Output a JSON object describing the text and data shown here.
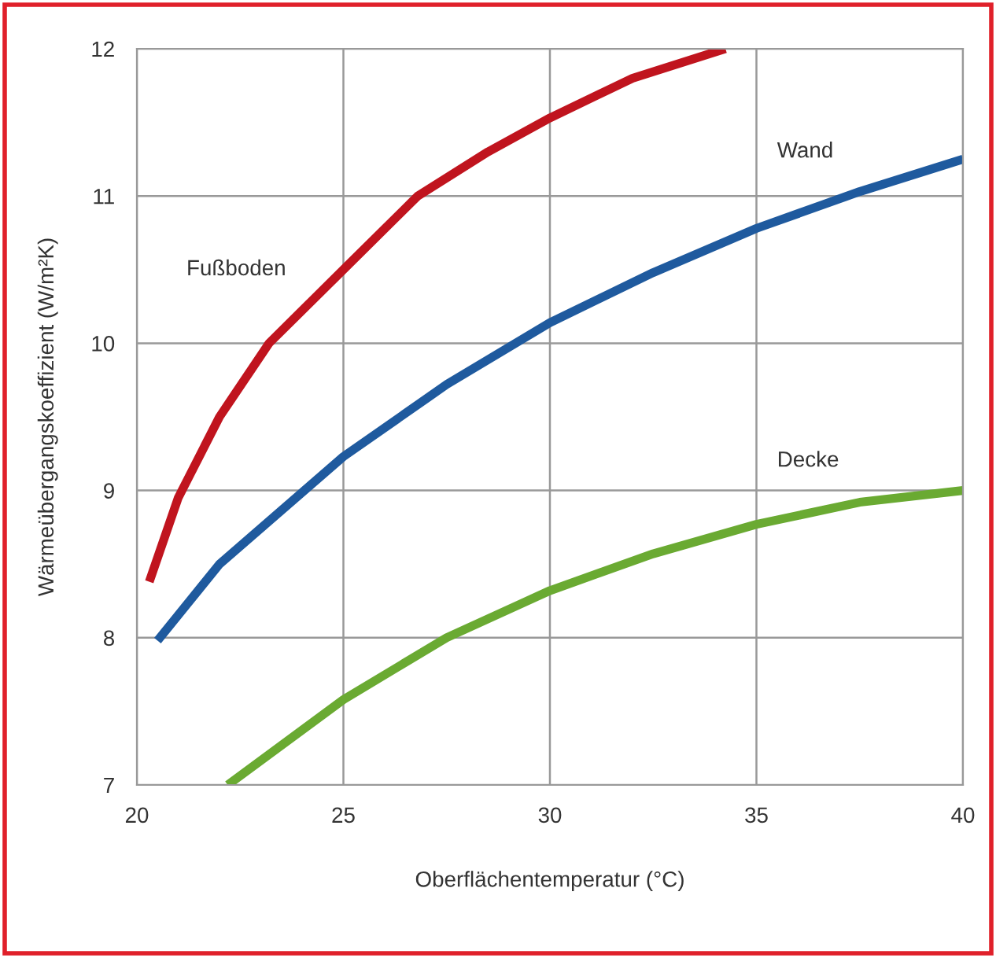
{
  "chart_data": {
    "type": "line",
    "xlabel": "Oberflächentemperatur (°C)",
    "ylabel": "Wärmeübergangskoeffizient (W/m²K)",
    "xlim": [
      20,
      40
    ],
    "xticks": [
      20,
      25,
      30,
      35,
      40
    ],
    "ylim": [
      7,
      12
    ],
    "yticks": [
      7,
      8,
      9,
      10,
      11,
      12
    ],
    "grid": true,
    "legend": false,
    "marker": "none",
    "line_style": "solid",
    "series": [
      {
        "name": "Fußboden",
        "color": "#c0141e",
        "x": [
          20.3,
          21,
          22,
          23.2,
          25,
          26.8,
          28.5,
          30,
          32,
          34.25
        ],
        "values": [
          8.38,
          8.95,
          9.5,
          10.0,
          10.5,
          11.0,
          11.3,
          11.53,
          11.8,
          12.0
        ]
      },
      {
        "name": "Wand",
        "color": "#1f5a9e",
        "x": [
          20.5,
          22,
          25,
          27.5,
          30,
          32.5,
          35,
          37.5,
          40
        ],
        "values": [
          7.98,
          8.5,
          9.23,
          9.72,
          10.14,
          10.48,
          10.78,
          11.03,
          11.25
        ]
      },
      {
        "name": "Decke",
        "color": "#6aaa32",
        "x": [
          22.2,
          25,
          27.5,
          30,
          32.5,
          35,
          37.5,
          40
        ],
        "values": [
          7.0,
          7.58,
          8.0,
          8.32,
          8.57,
          8.77,
          8.92,
          9.0
        ]
      }
    ]
  }
}
